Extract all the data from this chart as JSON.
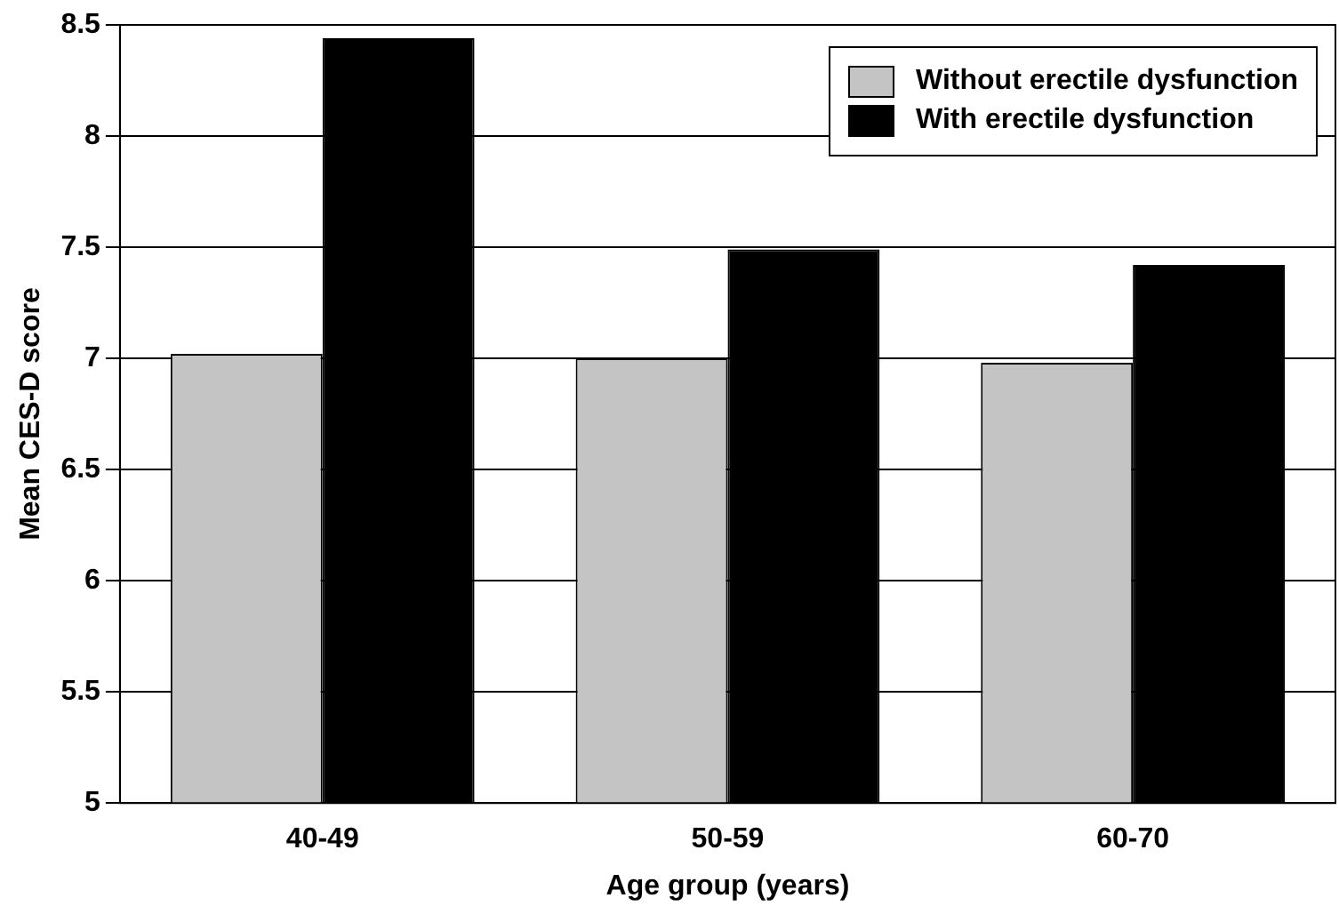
{
  "chart_data": {
    "type": "bar",
    "xlabel": "Age group (years)",
    "ylabel": "Mean CES-D score",
    "categories": [
      "40-49",
      "50-59",
      "60-70"
    ],
    "series": [
      {
        "name": "Without erectile dysfunction",
        "color": "#c4c4c4",
        "values": [
          7.02,
          7.0,
          6.98
        ]
      },
      {
        "name": "With erectile dysfunction",
        "color": "#000000",
        "values": [
          8.44,
          7.49,
          7.42
        ]
      }
    ],
    "ylim": [
      5,
      8.5
    ],
    "yticks": [
      5,
      5.5,
      6,
      6.5,
      7,
      7.5,
      8,
      8.5
    ],
    "grid": "y",
    "legend": "top right"
  }
}
